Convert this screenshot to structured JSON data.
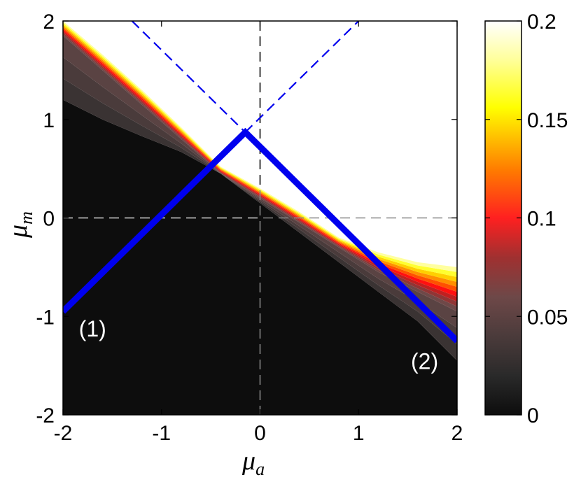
{
  "chart_data": {
    "type": "heatmap",
    "title": "",
    "xlabel": "μ",
    "xlabel_sub": "a",
    "ylabel": "μ",
    "ylabel_sub": "m",
    "xlim": [
      -2,
      2
    ],
    "ylim": [
      -2,
      2
    ],
    "xticks": [
      "-2",
      "-1",
      "0",
      "1",
      "2"
    ],
    "yticks": [
      "-2",
      "-1",
      "0",
      "1",
      "2"
    ],
    "colorbar": {
      "range": [
        0,
        0.2
      ],
      "ticks": [
        "0",
        "0.05",
        "0.1",
        "0.15",
        "0.2"
      ],
      "tick_values": [
        0,
        0.05,
        0.1,
        0.15,
        0.2
      ],
      "colormap": "hot"
    },
    "contour_boundaries": {
      "x": [
        -2,
        -1.6,
        -1.2,
        -0.8,
        -0.4,
        0,
        0.4,
        0.8,
        1.2,
        1.6,
        2
      ],
      "upper_edge_0_2": [
        2.0,
        1.66,
        1.3,
        0.92,
        0.52,
        0.3,
        0.06,
        -0.2,
        -0.35,
        -0.45,
        -0.5
      ],
      "low_edge_0_02": [
        1.85,
        1.5,
        1.15,
        0.8,
        0.45,
        0.2,
        -0.05,
        -0.3,
        -0.55,
        -0.75,
        -0.95
      ],
      "black_edge": [
        1.2,
        1.0,
        0.83,
        0.67,
        0.45,
        0.15,
        -0.15,
        -0.45,
        -0.75,
        -1.05,
        -1.45
      ]
    },
    "series": [
      {
        "style": "solid",
        "color": "#0000ee",
        "x": [
          -2,
          -0.15,
          2
        ],
        "y": [
          -0.95,
          0.87,
          -1.25
        ]
      },
      {
        "style": "dashed",
        "color": "#0000ee",
        "x": [
          -1.3,
          1.0
        ],
        "y": [
          2.0,
          2.0
        ],
        "via": [
          -0.15,
          0.87
        ]
      }
    ],
    "reference_lines": {
      "x": 0,
      "y": 0,
      "style": "dashed"
    },
    "annotations": [
      {
        "text": "(1)",
        "x": -1.7,
        "y": -1.12
      },
      {
        "text": "(2)",
        "x": 1.67,
        "y": -1.45
      }
    ]
  },
  "colors": {
    "line_blue": "#0000ee",
    "background_dark": "#0d0d0d",
    "frame": "#000000"
  }
}
